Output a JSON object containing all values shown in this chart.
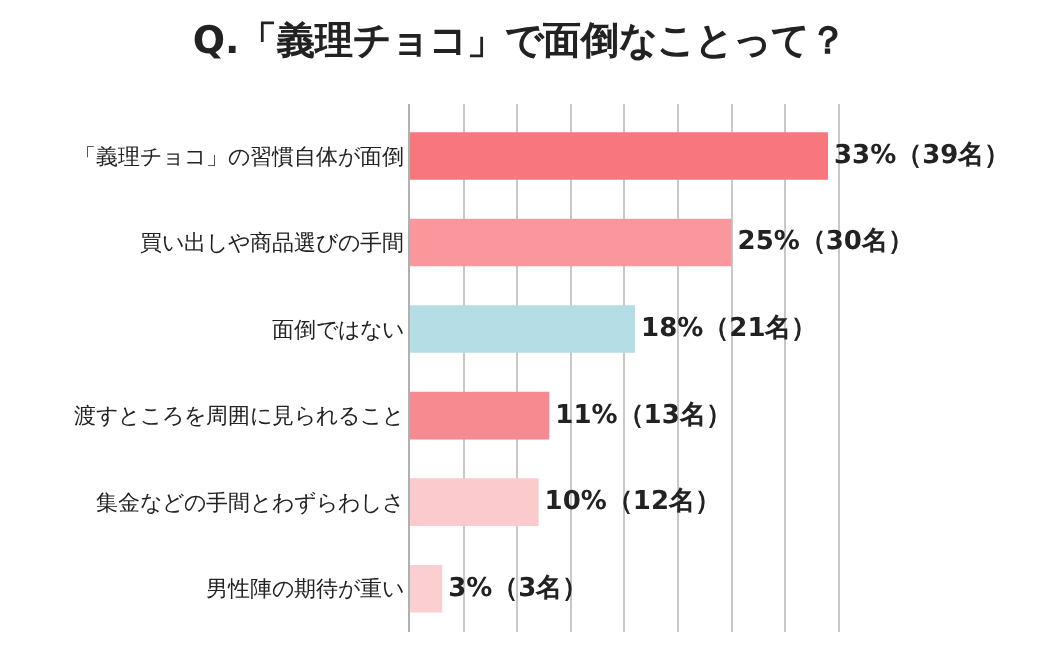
{
  "chart_data": {
    "type": "bar",
    "orientation": "horizontal",
    "title": "Q.「義理チョコ」で面倒なことって？",
    "categories": [
      "「義理チョコ」の習慣自体が面倒",
      "買い出しや商品選びの手間",
      "面倒ではない",
      "渡すところを周囲に見られること",
      "集金などの手間とわずらわしさ",
      "男性陣の期待が重い"
    ],
    "values": [
      39,
      30,
      21,
      13,
      12,
      3
    ],
    "value_labels": [
      "33%（39名）",
      "25%（30名）",
      "18%（21名）",
      "11%（13名）",
      "10%（12名）",
      "3%（3名）"
    ],
    "colors": [
      "#f8777f",
      "#f9979c",
      "#b5dde6",
      "#f68a90",
      "#fbcacc",
      "#fbcfd1"
    ],
    "grid": "x"
  }
}
